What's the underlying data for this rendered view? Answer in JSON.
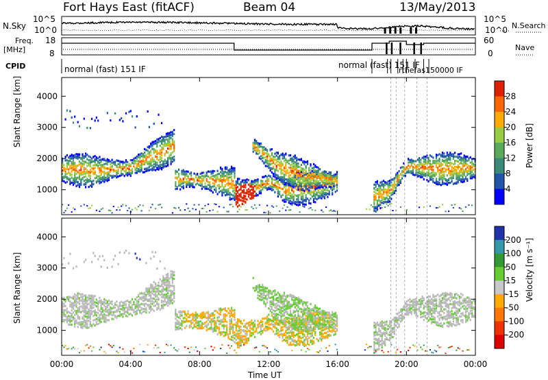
{
  "header": {
    "station": "Fort Hays East (fitACF)",
    "beam": "Beam 04",
    "date": "13/May/2013"
  },
  "top_panels": {
    "nsky_label": "N.Sky",
    "nsky_ticks": [
      "10^5",
      "10^0"
    ],
    "nsearch_label": "N.Search",
    "nsearch_ticks": [
      "10^5",
      "10^0"
    ],
    "freq_label": "Freq.",
    "freq_unit": "[MHz]",
    "freq_ticks": [
      "18",
      "8"
    ],
    "nave_label": "Nave",
    "nave_ticks": [
      "60",
      "0"
    ],
    "cpid_label": "CPID",
    "cpid_segments": [
      {
        "start": 0,
        "end": 18,
        "label": "normal (fast) 151 IF"
      },
      {
        "start": 18,
        "end": 24,
        "label": "normal (fast) 151 IF"
      }
    ],
    "cpid_overlap_text": "rthefas150000 IF"
  },
  "colors": {
    "power": [
      "#0000ff",
      "#2255aa",
      "#3a8a7a",
      "#5aaa5a",
      "#99cc44",
      "#ffaa00",
      "#ff6600",
      "#dd2200",
      "#bb0000"
    ],
    "velocity": [
      "#2233aa",
      "#3399aa",
      "#339933",
      "#66cc33",
      "#c8c8c8",
      "#ffaa00",
      "#ff7700",
      "#ee3300",
      "#dd0000"
    ],
    "ground_scatter": "#b8b8b8"
  },
  "chart_data": [
    {
      "type": "heatmap",
      "panel": "power",
      "x_range_hours": [
        0,
        24
      ],
      "ylabel": "Slant Range [km]",
      "yticks": [
        1000,
        2000,
        3000,
        4000
      ],
      "ylim": [
        200,
        4600
      ],
      "colorbar": {
        "label": "Power [dB]",
        "ticks": [
          "4",
          "8",
          "12",
          "16",
          "20",
          "24",
          "28"
        ]
      },
      "echo_bands": [
        {
          "range_km": [
            [
              0,
              1700
            ],
            [
              2,
              1650
            ],
            [
              3,
              1700
            ],
            [
              4,
              1750
            ],
            [
              5,
              2050
            ],
            [
              6,
              2300
            ],
            [
              6.5,
              2450
            ]
          ]
        },
        {
          "range_km": [
            [
              6.5,
              1400
            ],
            [
              8,
              1350
            ],
            [
              9.5,
              1300
            ],
            [
              10,
              1200
            ]
          ]
        },
        {
          "range_km": [
            [
              10,
              900
            ],
            [
              11,
              1050
            ],
            [
              12,
              1300
            ],
            [
              13,
              1000
            ],
            [
              14,
              1100
            ],
            [
              16,
              1250
            ]
          ]
        },
        {
          "range_km": [
            [
              11,
              2500
            ],
            [
              12.5,
              1800
            ],
            [
              14,
              1500
            ],
            [
              16,
              1350
            ]
          ]
        },
        {
          "range_km": [
            [
              18,
              800
            ],
            [
              19,
              1000
            ],
            [
              20,
              1800
            ],
            [
              21,
              1750
            ],
            [
              22,
              1700
            ],
            [
              24,
              1750
            ]
          ]
        }
      ]
    },
    {
      "type": "heatmap",
      "panel": "velocity",
      "x_range_hours": [
        0,
        24
      ],
      "xlabel": "Time UT",
      "xticks": [
        "00:00",
        "04:00",
        "08:00",
        "12:00",
        "16:00",
        "20:00",
        "00:00"
      ],
      "ylabel": "Slant Range [km]",
      "yticks": [
        1000,
        2000,
        3000,
        4000
      ],
      "ylim": [
        200,
        4600
      ],
      "colorbar": {
        "label": "Velocity [m s⁻¹]",
        "ticks": [
          "200",
          "100",
          "50",
          "15",
          "-15",
          "-50",
          "-100",
          "-200"
        ]
      }
    }
  ]
}
